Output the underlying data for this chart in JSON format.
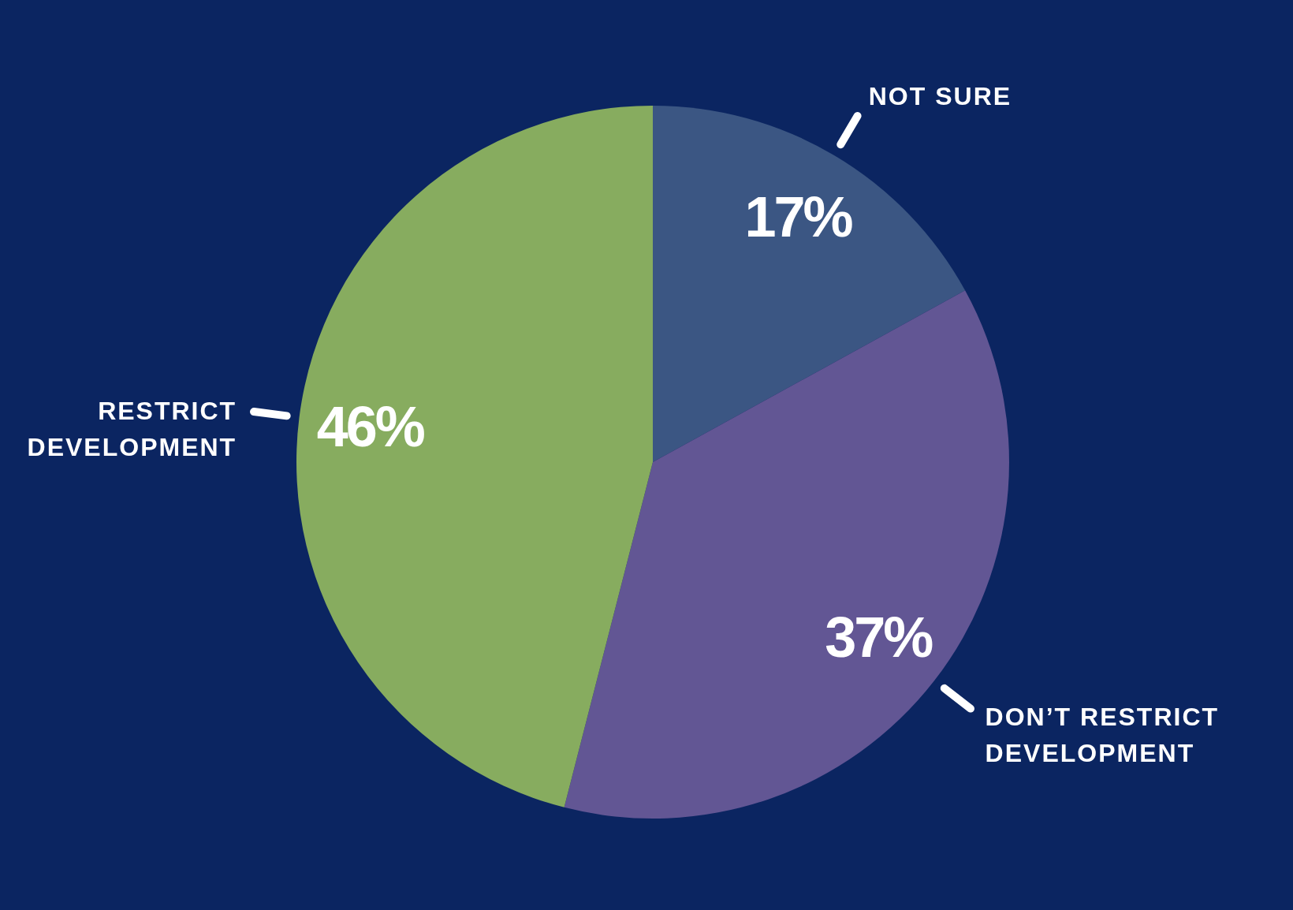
{
  "chart_data": {
    "type": "pie",
    "categories": [
      "NOT SURE",
      "DON’T RESTRICT DEVELOPMENT",
      "RESTRICT DEVELOPMENT"
    ],
    "values": [
      17,
      37,
      46
    ],
    "colors": [
      "#3b5683",
      "#625694",
      "#87ac5f"
    ],
    "value_labels": [
      "17%",
      "37%",
      "46%"
    ]
  }
}
